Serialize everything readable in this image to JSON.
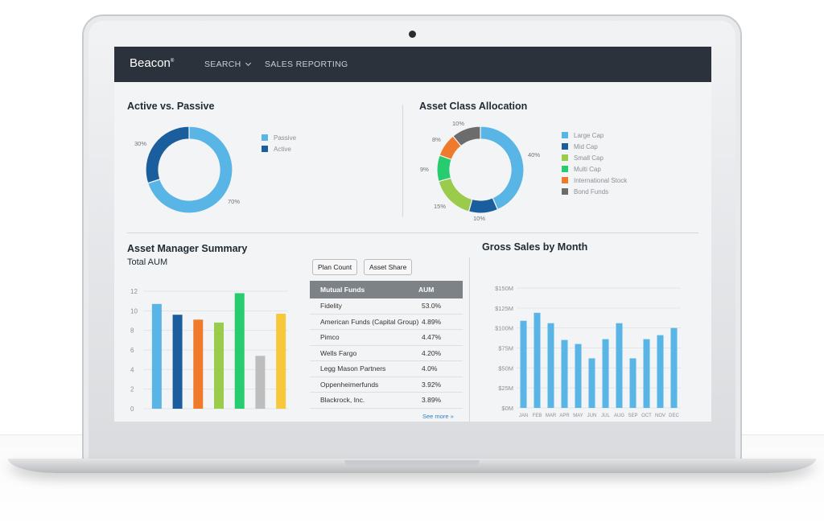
{
  "app": {
    "brand": "Beacon",
    "brand_mark": "®"
  },
  "nav": {
    "search": "SEARCH",
    "sales_reporting": "SALES REPORTING"
  },
  "active_passive": {
    "title": "Active vs. Passive",
    "chart_data": {
      "type": "pie",
      "donut": true,
      "categories": [
        "Passive",
        "Active"
      ],
      "values": [
        70,
        30
      ],
      "labels": [
        "70%",
        "30%"
      ],
      "colors": [
        "#58b5e6",
        "#1b5e9e"
      ]
    }
  },
  "asset_allocation": {
    "title": "Asset Class Allocation",
    "chart_data": {
      "type": "pie",
      "donut": true,
      "categories": [
        "Large Cap",
        "Mid Cap",
        "Small Cap",
        "Multi Cap",
        "International Stock",
        "Bond Funds"
      ],
      "values": [
        40,
        10,
        15,
        9,
        8,
        10
      ],
      "labels": [
        "40%",
        "10%",
        "15%",
        "9%",
        "8%",
        "10%"
      ],
      "colors": [
        "#58b5e6",
        "#1b5e9e",
        "#9acb4a",
        "#27cc6e",
        "#f07a2c",
        "#6c6c6c"
      ]
    }
  },
  "asset_manager": {
    "title": "Asset Manager Summary",
    "subtitle": "Total AUM",
    "chart_data": {
      "type": "bar",
      "ylim": [
        0,
        12
      ],
      "yticks": [
        "0",
        "2",
        "4",
        "6",
        "8",
        "10",
        "12"
      ],
      "values": [
        10.7,
        9.6,
        9.1,
        8.8,
        11.8,
        5.4,
        9.7
      ],
      "colors": [
        "#58b5e6",
        "#1b5e9e",
        "#f07a2c",
        "#9acb4a",
        "#27cc6e",
        "#bdbdbd",
        "#f7c93a"
      ]
    },
    "buttons": {
      "plan_count": "Plan Count",
      "asset_share": "Asset Share"
    },
    "table": {
      "headers": [
        "Mutual Funds",
        "AUM"
      ],
      "rows": [
        [
          "Fidelity",
          "53.0%"
        ],
        [
          "American Funds (Capital Group)",
          "4.89%"
        ],
        [
          "Pimco",
          "4.47%"
        ],
        [
          "Wells Fargo",
          "4.20%"
        ],
        [
          "Legg Mason Partners",
          "4.0%"
        ],
        [
          "Oppenheimerfunds",
          "3.92%"
        ],
        [
          "Blackrock, Inc.",
          "3.89%"
        ]
      ],
      "see_more": "See more »"
    }
  },
  "gross_sales": {
    "title": "Gross Sales by Month",
    "chart_data": {
      "type": "bar",
      "categories": [
        "JAN",
        "FEB",
        "MAR",
        "APR",
        "MAY",
        "JUN",
        "JUL",
        "AUG",
        "SEP",
        "OCT",
        "NOV",
        "DEC"
      ],
      "values": [
        109,
        119,
        106,
        85,
        80,
        62,
        86,
        106,
        62,
        86,
        91,
        100
      ],
      "ylim": [
        0,
        150
      ],
      "yticks": [
        "$0M",
        "$25M",
        "$50M",
        "$75M",
        "$100M",
        "$125M",
        "$150M"
      ],
      "color": "#58b5e6"
    }
  }
}
